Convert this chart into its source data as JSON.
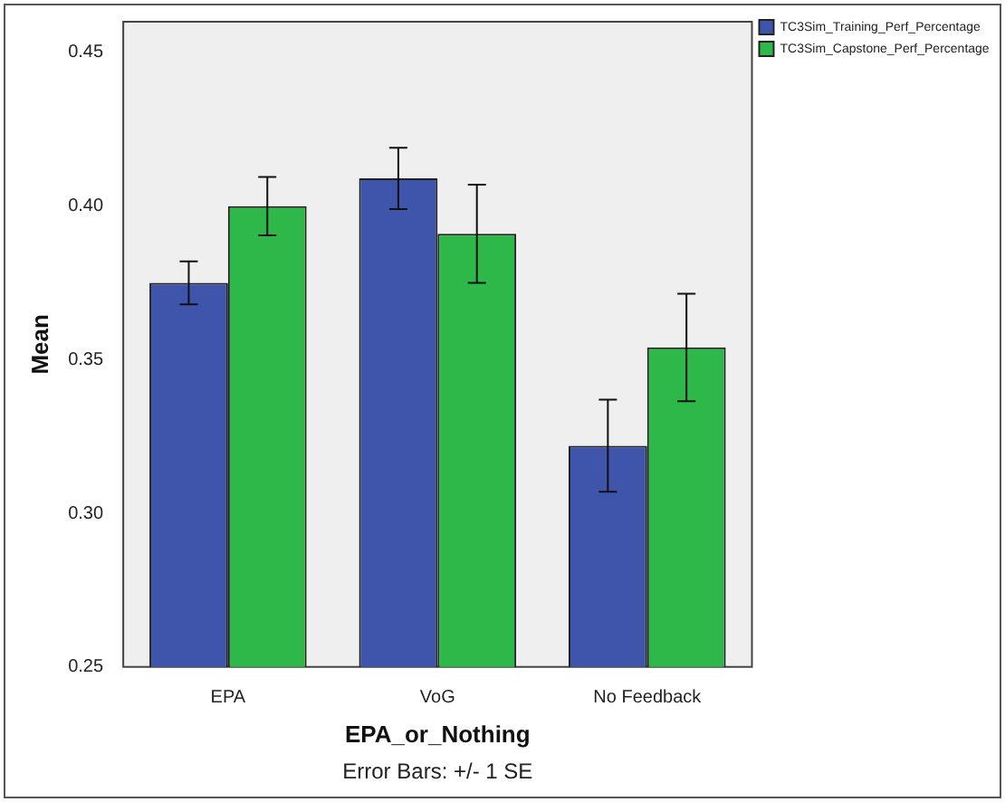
{
  "chart_data": {
    "type": "bar",
    "xlabel": "EPA_or_Nothing",
    "ylabel": "Mean",
    "categories": [
      "EPA",
      "VoG",
      "No Feedback"
    ],
    "series": [
      {
        "name": "TC3Sim_Training_Perf_Percentage",
        "color": "#3f55ab",
        "values": [
          0.375,
          0.409,
          0.322
        ],
        "errors": [
          0.007,
          0.01,
          0.015
        ]
      },
      {
        "name": "TC3Sim_Capstone_Perf_Percentage",
        "color": "#2fb84a",
        "values": [
          0.4,
          0.391,
          0.354
        ],
        "errors": [
          0.0095,
          0.016,
          0.0175
        ]
      }
    ],
    "ylim": [
      0.25,
      0.46
    ],
    "yticks": [
      {
        "value": 0.25,
        "label": "0.25"
      },
      {
        "value": 0.3,
        "label": "0.30"
      },
      {
        "value": 0.35,
        "label": "0.35"
      },
      {
        "value": 0.4,
        "label": "0.40"
      },
      {
        "value": 0.45,
        "label": "0.45"
      }
    ],
    "grid": false,
    "legend": "top right",
    "annotations": [
      "Error Bars: +/- 1 SE"
    ]
  }
}
